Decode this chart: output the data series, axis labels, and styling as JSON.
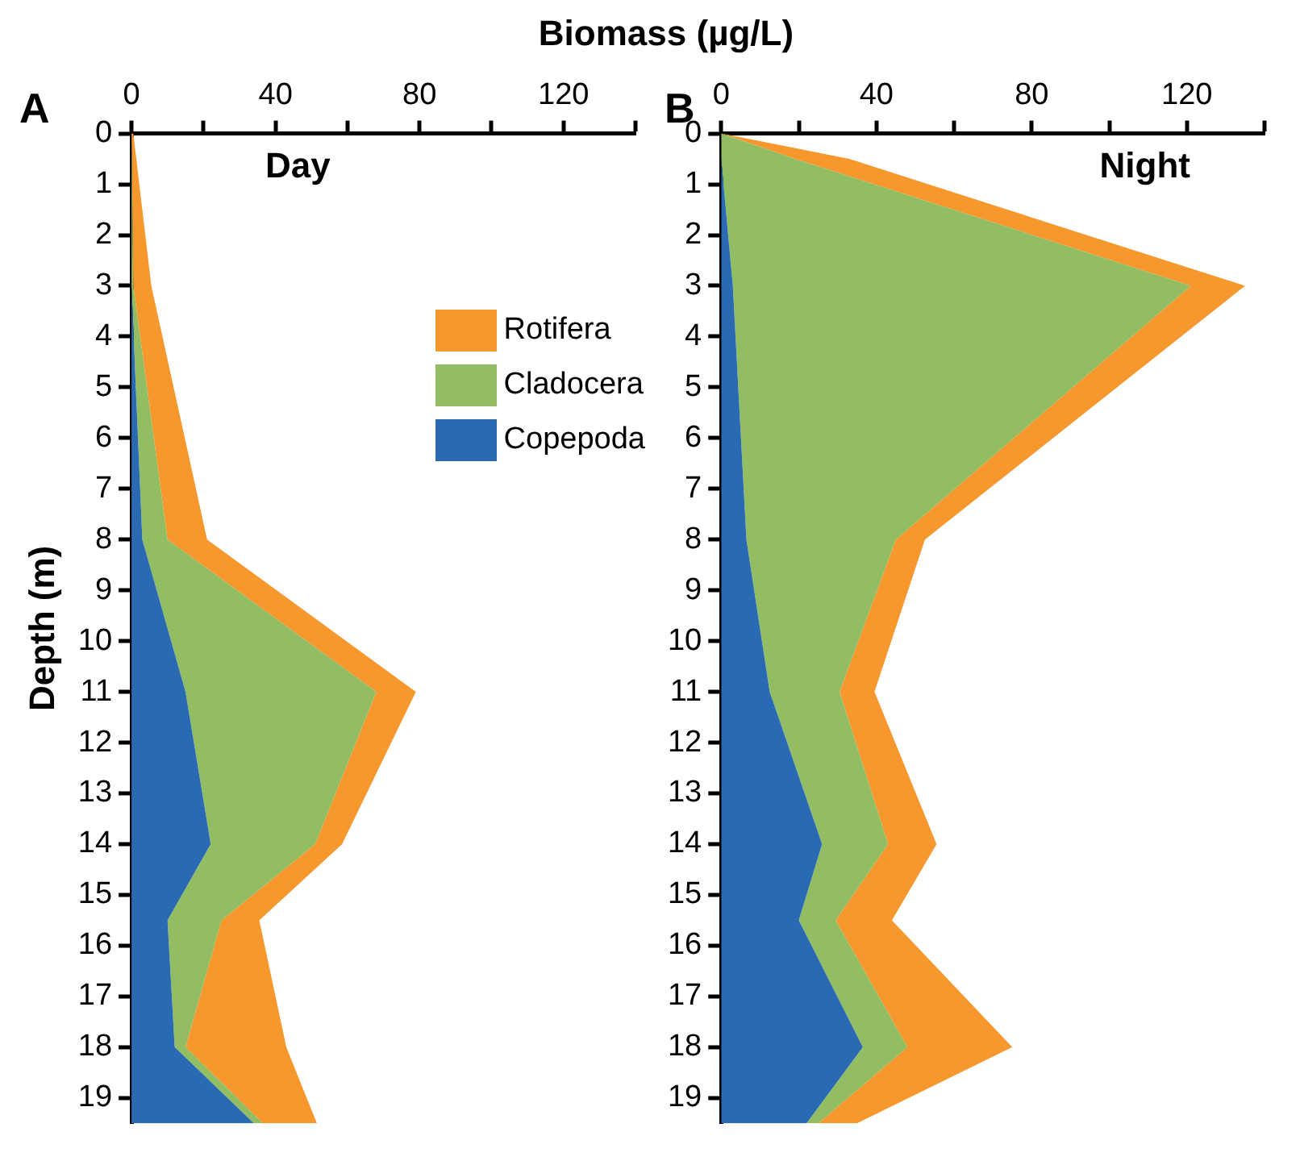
{
  "chart_data": [
    {
      "type": "area",
      "title": "Day",
      "xlabel": "Biomass (µg/L)",
      "ylabel": "Depth (m)",
      "annotations": [
        "A"
      ],
      "orientation": "horizontal",
      "stacked": true,
      "legend": "top right",
      "grid": false,
      "x": [
        0,
        3,
        8,
        11,
        14,
        15.5,
        18,
        19.5
      ],
      "xlim": [
        0,
        140
      ],
      "xticks": [
        0,
        {
          "value": 20,
          "label": null
        },
        40,
        {
          "value": 60,
          "label": null
        },
        80,
        {
          "value": 100,
          "label": null
        },
        120,
        {
          "value": 140,
          "label": null
        }
      ],
      "ylim": [
        19.5,
        0
      ],
      "yticks": [
        0,
        1,
        2,
        3,
        4,
        5,
        6,
        7,
        8,
        9,
        10,
        11,
        12,
        13,
        14,
        15,
        16,
        17,
        18,
        19
      ],
      "series": [
        {
          "name": "Copepoda",
          "color": "#2a6ab3",
          "values": [
            0,
            0,
            3,
            15,
            22,
            10,
            12,
            34
          ]
        },
        {
          "name": "Cladocera",
          "color": "#92bd62",
          "values": [
            0,
            0.5,
            7,
            53,
            29,
            15,
            3,
            2.5
          ]
        },
        {
          "name": "Rotifera",
          "color": "#f7982e",
          "values": [
            0.5,
            5,
            11,
            11,
            7.5,
            10.5,
            28,
            15
          ]
        }
      ]
    },
    {
      "type": "area",
      "title": "Night",
      "annotations": [
        "B"
      ],
      "orientation": "horizontal",
      "stacked": true,
      "grid": false,
      "x": [
        0,
        0.5,
        3,
        8,
        11,
        14,
        15.5,
        18,
        19.5
      ],
      "xlim": [
        0,
        140
      ],
      "xticks": [
        0,
        {
          "value": 20,
          "label": null
        },
        40,
        {
          "value": 60,
          "label": null
        },
        80,
        {
          "value": 100,
          "label": null
        },
        120,
        {
          "value": 140,
          "label": null
        }
      ],
      "ylim": [
        19.5,
        0
      ],
      "yticks": [
        0,
        1,
        2,
        3,
        4,
        5,
        6,
        7,
        8,
        9,
        10,
        11,
        12,
        13,
        14,
        15,
        16,
        17,
        18,
        19
      ],
      "series": [
        {
          "color": "#2a6ab3",
          "values": [
            0,
            0,
            3,
            6.5,
            12.5,
            26,
            20,
            36.5,
            22
          ]
        },
        {
          "color": "#92bd62",
          "values": [
            0,
            19,
            118,
            38.5,
            18,
            17,
            9.5,
            11.5,
            3
          ]
        },
        {
          "color": "#f7982e",
          "values": [
            0,
            14,
            14,
            7.5,
            9,
            12.5,
            14.5,
            27,
            10
          ]
        }
      ]
    }
  ]
}
